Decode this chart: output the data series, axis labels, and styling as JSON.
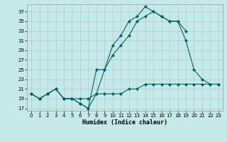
{
  "xlabel": "Humidex (Indice chaleur)",
  "background_color": "#c5e8e8",
  "grid_color": "#b0cccc",
  "line_color": "#006666",
  "xlim": [
    -0.5,
    23.5
  ],
  "ylim": [
    16.5,
    38.5
  ],
  "xticks": [
    0,
    1,
    2,
    3,
    4,
    5,
    6,
    7,
    8,
    9,
    10,
    11,
    12,
    13,
    14,
    15,
    16,
    17,
    18,
    19,
    20,
    21,
    22,
    23
  ],
  "yticks": [
    17,
    19,
    21,
    23,
    25,
    27,
    29,
    31,
    33,
    35,
    37
  ],
  "line1_x": [
    0,
    1,
    2,
    3,
    4,
    5,
    6,
    7,
    8,
    9,
    10,
    11,
    12,
    13,
    14,
    15,
    16,
    17,
    18,
    19
  ],
  "line1_y": [
    20,
    19,
    20,
    21,
    19,
    19,
    18,
    17,
    20,
    25,
    30,
    32,
    35,
    36,
    38,
    37,
    36,
    35,
    35,
    33
  ],
  "line2_x": [
    0,
    1,
    2,
    3,
    4,
    5,
    6,
    7,
    8,
    9,
    10,
    11,
    12,
    13,
    14,
    15,
    16,
    17,
    18,
    19,
    20,
    21,
    22,
    23
  ],
  "line2_y": [
    20,
    19,
    20,
    21,
    19,
    19,
    18,
    17,
    25,
    25,
    28,
    30,
    32,
    35,
    36,
    37,
    36,
    35,
    35,
    31,
    25,
    23,
    22,
    22
  ],
  "line3_x": [
    0,
    1,
    2,
    3,
    4,
    5,
    6,
    7,
    8,
    9,
    10,
    11,
    12,
    13,
    14,
    15,
    16,
    17,
    18,
    19,
    20,
    21,
    22,
    23
  ],
  "line3_y": [
    20,
    19,
    20,
    21,
    19,
    19,
    19,
    19,
    20,
    20,
    20,
    20,
    21,
    21,
    22,
    22,
    22,
    22,
    22,
    22,
    22,
    22,
    22,
    22
  ]
}
